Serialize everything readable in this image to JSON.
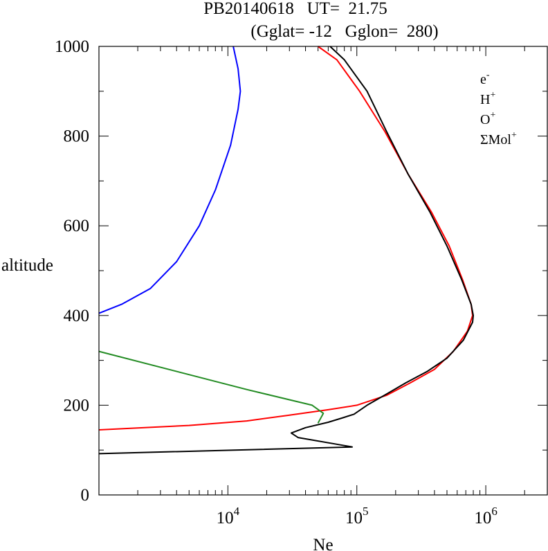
{
  "chart_data": {
    "type": "line",
    "title_line1": "PB20140618   UT=  21.75",
    "title_line2": "(Gglat= -12   Gglon=  280)",
    "xlabel": "Ne",
    "ylabel": "altitude",
    "x_scale": "log",
    "xlim": [
      1000,
      3000000
    ],
    "ylim": [
      0,
      1000
    ],
    "x_ticks": [
      {
        "value": 10000,
        "base": "10",
        "exp": "4"
      },
      {
        "value": 100000,
        "base": "10",
        "exp": "5"
      },
      {
        "value": 1000000,
        "base": "10",
        "exp": "6"
      }
    ],
    "y_ticks": [
      "0",
      "200",
      "400",
      "600",
      "800",
      "1000"
    ],
    "grid": false,
    "legend_position": "top-right",
    "series": [
      {
        "name": "e-",
        "legend_base": "e",
        "legend_sup": "-",
        "color": "#000000",
        "points": [
          [
            1000,
            92
          ],
          [
            92000,
            107
          ],
          [
            80000,
            110
          ],
          [
            35000,
            128
          ],
          [
            31000,
            138
          ],
          [
            40000,
            150
          ],
          [
            60000,
            162
          ],
          [
            78000,
            172
          ],
          [
            95000,
            180
          ],
          [
            120000,
            200
          ],
          [
            170000,
            225
          ],
          [
            240000,
            250
          ],
          [
            350000,
            275
          ],
          [
            500000,
            305
          ],
          [
            670000,
            345
          ],
          [
            790000,
            385
          ],
          [
            800000,
            400
          ],
          [
            770000,
            425
          ],
          [
            650000,
            480
          ],
          [
            500000,
            555
          ],
          [
            370000,
            630
          ],
          [
            250000,
            715
          ],
          [
            170000,
            810
          ],
          [
            120000,
            900
          ],
          [
            80000,
            970
          ],
          [
            62000,
            1000
          ]
        ]
      },
      {
        "name": "H+",
        "legend_base": "H",
        "legend_sup": "+",
        "color": "#0000ff",
        "points": [
          [
            1000,
            405
          ],
          [
            1500,
            425
          ],
          [
            2500,
            460
          ],
          [
            4000,
            520
          ],
          [
            6000,
            600
          ],
          [
            8000,
            680
          ],
          [
            10500,
            780
          ],
          [
            12000,
            860
          ],
          [
            12500,
            900
          ],
          [
            12000,
            950
          ],
          [
            11000,
            1000
          ]
        ]
      },
      {
        "name": "O+",
        "legend_base": "O",
        "legend_sup": "+",
        "color": "#ff0000",
        "points": [
          [
            1000,
            145
          ],
          [
            5000,
            155
          ],
          [
            14000,
            165
          ],
          [
            30000,
            178
          ],
          [
            60000,
            190
          ],
          [
            100000,
            200
          ],
          [
            170000,
            222
          ],
          [
            260000,
            250
          ],
          [
            400000,
            280
          ],
          [
            560000,
            320
          ],
          [
            720000,
            365
          ],
          [
            790000,
            400
          ],
          [
            770000,
            425
          ],
          [
            660000,
            480
          ],
          [
            520000,
            555
          ],
          [
            380000,
            630
          ],
          [
            250000,
            715
          ],
          [
            165000,
            810
          ],
          [
            105000,
            900
          ],
          [
            70000,
            970
          ],
          [
            50000,
            1000
          ]
        ]
      },
      {
        "name": "ΣMol+",
        "legend_base": "ΣMol",
        "legend_sup": "+",
        "color": "#228b22",
        "points": [
          [
            1000,
            320
          ],
          [
            14000,
            235
          ],
          [
            45000,
            200
          ],
          [
            55000,
            182
          ],
          [
            50000,
            160
          ]
        ]
      }
    ]
  }
}
